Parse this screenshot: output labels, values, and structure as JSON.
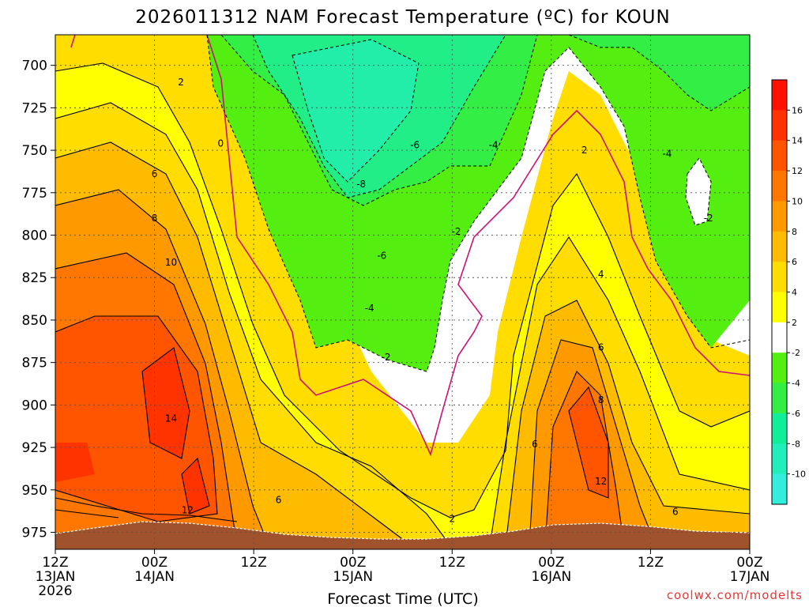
{
  "chart_data": {
    "type": "heatmap",
    "title": "2026011312 NAM Forecast Temperature (ºC) for KOUN",
    "xlabel": "Forecast Time (UTC)",
    "ylabel": "",
    "x_ticks": [
      {
        "hour": 0,
        "top": "12Z",
        "bottom": "13JAN",
        "extra": "2026"
      },
      {
        "hour": 12,
        "top": "00Z",
        "bottom": "14JAN"
      },
      {
        "hour": 24,
        "top": "12Z",
        "bottom": ""
      },
      {
        "hour": 36,
        "top": "00Z",
        "bottom": "15JAN"
      },
      {
        "hour": 48,
        "top": "12Z",
        "bottom": ""
      },
      {
        "hour": 60,
        "top": "00Z",
        "bottom": "16JAN"
      },
      {
        "hour": 72,
        "top": "12Z",
        "bottom": ""
      },
      {
        "hour": 84,
        "top": "00Z",
        "bottom": "17JAN"
      }
    ],
    "xlim": [
      0,
      84
    ],
    "y_ticks": [
      700,
      725,
      750,
      775,
      800,
      825,
      850,
      875,
      900,
      925,
      950,
      975
    ],
    "ylim": [
      682,
      985
    ],
    "y_reversed": true,
    "colorbar": {
      "levels": [
        -12,
        -10,
        -8,
        -6,
        -4,
        -2,
        2,
        4,
        6,
        8,
        10,
        12,
        14,
        16,
        18
      ],
      "labels": [
        "16",
        "14",
        "12",
        "10",
        "8",
        "6",
        "4",
        "2",
        "-2",
        "-4",
        "-6",
        "-8",
        "-10"
      ],
      "colors": [
        "#33eedd",
        "#22eebb",
        "#11ee99",
        "#33ee44",
        "#55ee11",
        "#ffffff",
        "#ffff00",
        "#ffdd00",
        "#ffbb00",
        "#ff9900",
        "#ff7700",
        "#ff5500",
        "#ff3300",
        "#ff1100"
      ]
    },
    "contour_labels": [
      {
        "text": "2",
        "hour": 15.2,
        "p": 710
      },
      {
        "text": "0",
        "hour": 20.0,
        "p": 746
      },
      {
        "text": "6",
        "hour": 12.0,
        "p": 764
      },
      {
        "text": "8",
        "hour": 12.0,
        "p": 790
      },
      {
        "text": "10",
        "hour": 14.0,
        "p": 816
      },
      {
        "text": "14",
        "hour": 14.0,
        "p": 908
      },
      {
        "text": "12",
        "hour": 16.0,
        "p": 962
      },
      {
        "text": "6",
        "hour": 27.0,
        "p": 956
      },
      {
        "text": "-8",
        "hour": 37.0,
        "p": 770
      },
      {
        "text": "-6",
        "hour": 43.5,
        "p": 747
      },
      {
        "text": "-6",
        "hour": 39.5,
        "p": 812
      },
      {
        "text": "-4",
        "hour": 38.0,
        "p": 843
      },
      {
        "text": "-2",
        "hour": 40.0,
        "p": 872
      },
      {
        "text": "-2",
        "hour": 48.5,
        "p": 798
      },
      {
        "text": "-4",
        "hour": 53.0,
        "p": 747
      },
      {
        "text": "2",
        "hour": 48.0,
        "p": 967
      },
      {
        "text": "2",
        "hour": 64.0,
        "p": 750
      },
      {
        "text": "4",
        "hour": 66.0,
        "p": 823
      },
      {
        "text": "6",
        "hour": 66.0,
        "p": 866
      },
      {
        "text": "8",
        "hour": 66.0,
        "p": 897
      },
      {
        "text": "6",
        "hour": 58.0,
        "p": 923
      },
      {
        "text": "12",
        "hour": 66.0,
        "p": 945
      },
      {
        "text": "6",
        "hour": 75.0,
        "p": 963
      },
      {
        "text": "-4",
        "hour": 74.0,
        "p": 752
      },
      {
        "text": "-2",
        "hour": 79.0,
        "p": 790
      }
    ],
    "grid": true,
    "legend_position": "right"
  },
  "credit": "coolwx.com/modelts"
}
